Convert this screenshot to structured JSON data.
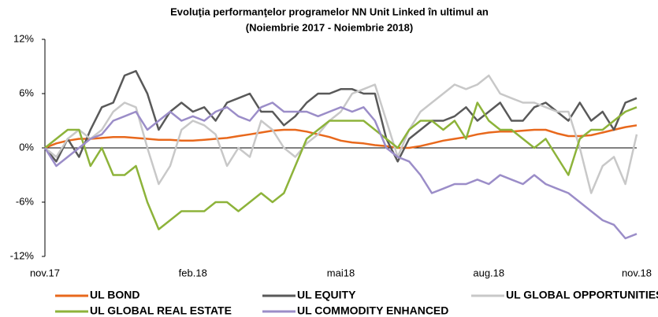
{
  "chart_data": {
    "type": "line",
    "title": "Evoluţia performanţelor programelor NN Unit Linked în ultimul an",
    "subtitle": "(Noiembrie 2017 - Noiembrie 2018)",
    "categories": [
      "nov.17",
      null,
      null,
      null,
      null,
      null,
      null,
      null,
      null,
      null,
      null,
      null,
      null,
      "feb.18",
      null,
      null,
      null,
      null,
      null,
      null,
      null,
      null,
      null,
      null,
      null,
      null,
      "mai18",
      null,
      null,
      null,
      null,
      null,
      null,
      null,
      null,
      null,
      null,
      null,
      null,
      "aug.18",
      null,
      null,
      null,
      null,
      null,
      null,
      null,
      null,
      null,
      null,
      null,
      null,
      "nov.18"
    ],
    "ylim": [
      -12,
      12
    ],
    "yticks": [
      {
        "value": -12,
        "label": "-12%"
      },
      {
        "value": -6,
        "label": "-6%"
      },
      {
        "value": 0,
        "label": "0%"
      },
      {
        "value": 6,
        "label": "6%"
      },
      {
        "value": 12,
        "label": "12%"
      }
    ],
    "grid": false,
    "series": [
      {
        "name": "UL BOND",
        "color": "#e8681c",
        "values": [
          0,
          0.5,
          0.8,
          1,
          1,
          1.1,
          1.2,
          1.2,
          1.1,
          1,
          0.9,
          0.9,
          0.8,
          0.8,
          0.9,
          1,
          1.1,
          1.3,
          1.5,
          1.7,
          1.9,
          2,
          2,
          1.8,
          1.5,
          1.2,
          0.8,
          0.6,
          0.5,
          0.3,
          0.2,
          0,
          0,
          0.2,
          0.5,
          0.8,
          1,
          1.2,
          1.5,
          1.7,
          1.8,
          1.8,
          1.9,
          2,
          2,
          1.6,
          1.3,
          1.3,
          1.4,
          1.7,
          2,
          2.3,
          2.5
        ]
      },
      {
        "name": "UL EQUITY",
        "color": "#595959",
        "values": [
          0,
          -1.5,
          1,
          -1,
          2,
          4.5,
          5,
          8,
          8.5,
          6,
          2,
          4,
          5,
          4,
          4.5,
          3,
          5,
          5.5,
          6,
          4,
          4,
          2.5,
          3.5,
          5,
          6,
          6,
          6.5,
          6.5,
          6,
          6,
          1,
          -1.5,
          1,
          2,
          3,
          3,
          3.5,
          4.5,
          3,
          4,
          5,
          3,
          3,
          4.5,
          5,
          4,
          3,
          5,
          3,
          4,
          2,
          5,
          5.5
        ]
      },
      {
        "name": "UL GLOBAL OPPORTUNITIES",
        "color": "#c8c8c8",
        "values": [
          0,
          -1,
          1,
          2,
          1,
          2,
          4,
          5,
          4.5,
          0,
          -4,
          -2,
          2,
          3,
          2.5,
          1.5,
          -2,
          0,
          -1,
          3,
          2,
          0,
          -1,
          0.5,
          1.5,
          3,
          4,
          6,
          6.5,
          7,
          3,
          -1,
          2,
          4,
          5,
          6,
          7,
          6.5,
          7,
          8,
          6,
          5.5,
          5,
          5,
          4.5,
          4,
          4,
          0,
          -5,
          -2,
          -1,
          -4,
          1.5
        ]
      },
      {
        "name": "UL GLOBAL REAL ESTATE",
        "color": "#8db33a",
        "values": [
          0,
          1,
          2,
          2,
          -2,
          0,
          -3,
          -3,
          -2,
          -6,
          -9,
          -8,
          -7,
          -7,
          -7,
          -6,
          -6,
          -7,
          -6,
          -5,
          -6,
          -5,
          -2,
          1,
          2,
          3,
          3,
          3,
          3,
          2,
          1,
          0,
          2,
          3,
          3,
          2,
          3,
          1,
          5,
          3,
          2,
          2,
          1,
          0,
          1,
          -1,
          -3,
          1,
          2,
          2,
          3,
          4,
          4.5
        ]
      },
      {
        "name": "UL COMMODITY ENHANCED",
        "color": "#9b8dc8",
        "values": [
          0,
          -2,
          -1,
          0,
          1,
          1.5,
          3,
          3.5,
          4,
          2,
          3,
          4,
          3,
          3.5,
          3,
          4,
          4.5,
          3.5,
          3,
          4.5,
          5,
          4,
          4,
          4,
          3.5,
          4,
          4.5,
          4,
          4.5,
          3,
          0,
          -1,
          -1.5,
          -3,
          -5,
          -4.5,
          -4,
          -4,
          -3.5,
          -4,
          -3,
          -3.5,
          -4,
          -3,
          -4,
          -4.5,
          -5,
          -6,
          -7,
          -8,
          -8.5,
          -10,
          -9.5
        ]
      }
    ]
  }
}
